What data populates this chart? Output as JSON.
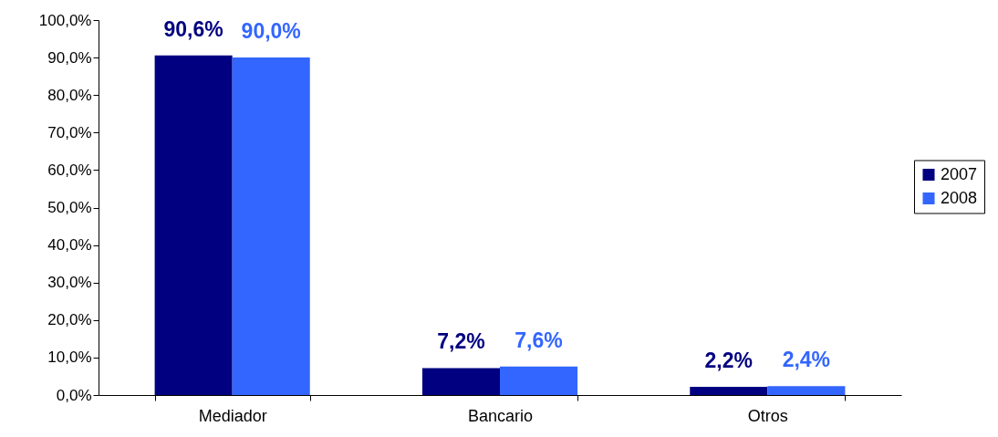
{
  "chart_data": {
    "type": "bar",
    "categories": [
      "Mediador",
      "Bancario",
      "Otros"
    ],
    "series": [
      {
        "name": "2007",
        "color": "#000080",
        "values": [
          90.6,
          7.2,
          2.2
        ],
        "value_labels": [
          "90,6%",
          "7,2%",
          "2,2%"
        ]
      },
      {
        "name": "2008",
        "color": "#3366ff",
        "values": [
          90.0,
          7.6,
          2.4
        ],
        "value_labels": [
          "90,0%",
          "7,6%",
          "2,4%"
        ]
      }
    ],
    "ylim": [
      0,
      100
    ],
    "yticks": [
      {
        "value": 0,
        "label": "0,0%"
      },
      {
        "value": 10,
        "label": "10,0%"
      },
      {
        "value": 20,
        "label": "20,0%"
      },
      {
        "value": 30,
        "label": "30,0%"
      },
      {
        "value": 40,
        "label": "40,0%"
      },
      {
        "value": 50,
        "label": "50,0%"
      },
      {
        "value": 60,
        "label": "60,0%"
      },
      {
        "value": 70,
        "label": "70,0%"
      },
      {
        "value": 80,
        "label": "80,0%"
      },
      {
        "value": 90,
        "label": "90,0%"
      },
      {
        "value": 100,
        "label": "100,0%"
      }
    ],
    "grid": false,
    "legend": "right"
  }
}
